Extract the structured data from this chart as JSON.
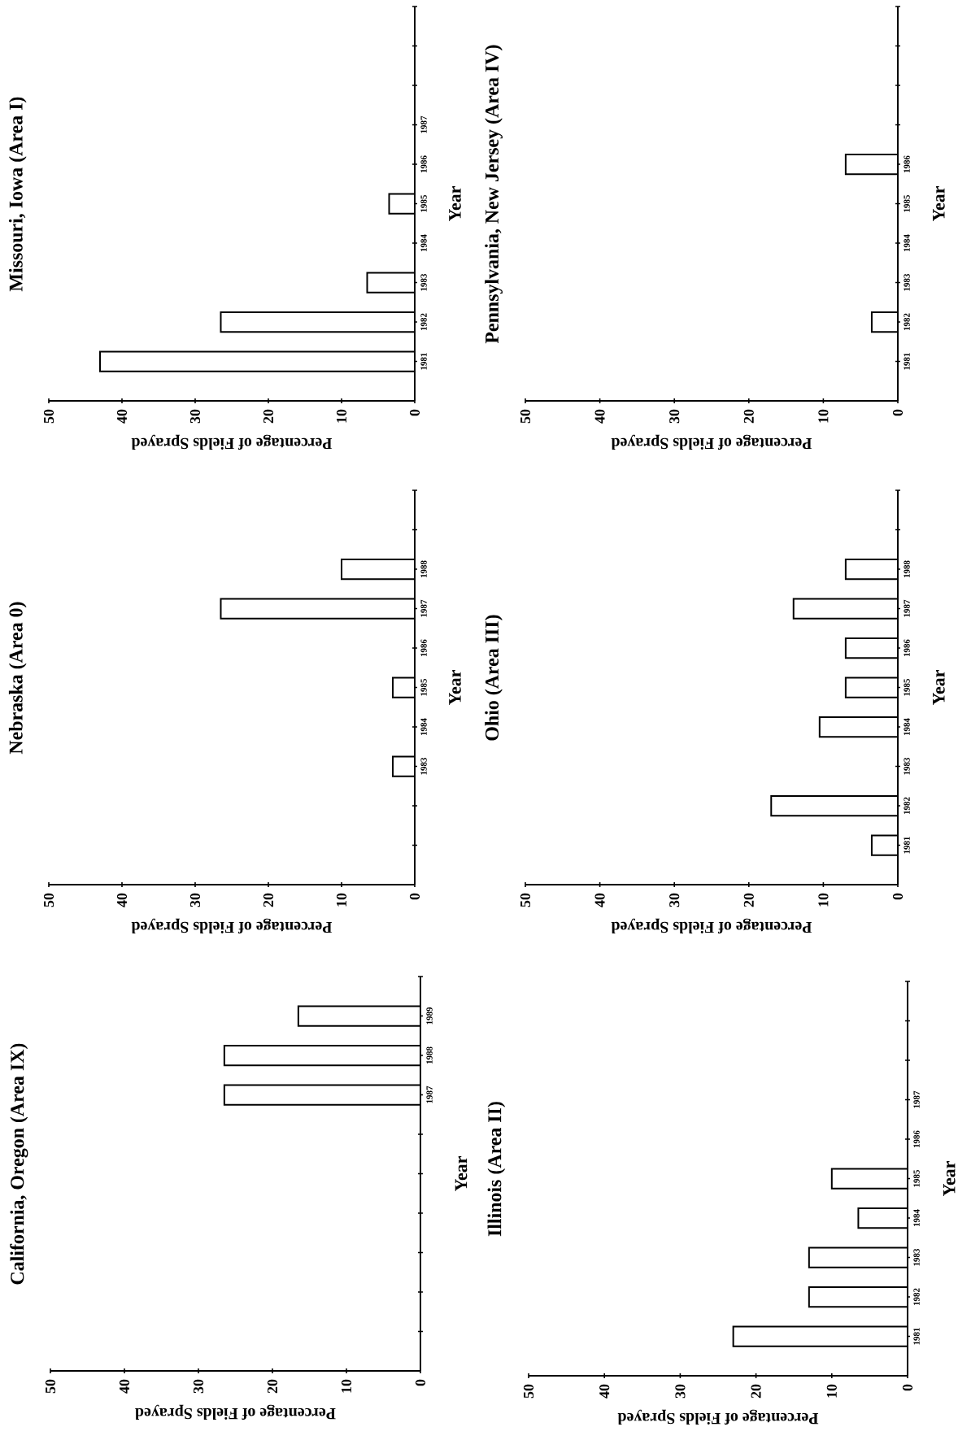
{
  "chart_data": [
    {
      "type": "bar",
      "orientation": "horizontal",
      "title": "Missouri, Iowa (Area I)",
      "ylabel": "Year",
      "xlabel": "Percentage of Fields Sprayed",
      "categories": [
        null,
        null,
        "1987",
        "1986",
        "1985",
        "1984",
        "1983",
        "1982",
        "1981"
      ],
      "values": [
        null,
        null,
        0,
        0,
        3.5,
        0,
        6.5,
        26.5,
        43
      ],
      "color": "#ffffff",
      "xlim": [
        50,
        0
      ],
      "xticks": [
        0,
        10,
        20,
        30,
        40,
        50
      ]
    },
    {
      "type": "bar",
      "orientation": "horizontal",
      "title": "Pennsylvania, New Jersey (Area IV)",
      "ylabel": "Year",
      "xlabel": "Percentage of Fields Sprayed",
      "categories": [
        null,
        null,
        null,
        "1986",
        "1985",
        "1984",
        "1983",
        "1982",
        "1981"
      ],
      "values": [
        null,
        null,
        null,
        7,
        0,
        0,
        0,
        3.5,
        0
      ],
      "color": "#ffffff",
      "xlim": [
        50,
        0
      ],
      "xticks": [
        0,
        10,
        20,
        30,
        40,
        50
      ]
    },
    {
      "type": "bar",
      "orientation": "horizontal",
      "title": "Nebraska (Area 0)",
      "ylabel": "Year",
      "xlabel": "Percentage of Fields Sprayed",
      "categories": [
        null,
        "1988",
        "1987",
        "1986",
        "1985",
        "1984",
        "1983",
        null,
        null
      ],
      "values": [
        null,
        10,
        26.5,
        0,
        3,
        0,
        3,
        null,
        null
      ],
      "color": "#ffffff",
      "xlim": [
        50,
        0
      ],
      "xticks": [
        0,
        10,
        20,
        30,
        40,
        50
      ]
    },
    {
      "type": "bar",
      "orientation": "horizontal",
      "title": "Ohio (Area III)",
      "ylabel": "Year",
      "xlabel": "Percentage of Fields Sprayed",
      "categories": [
        null,
        "1988",
        "1987",
        "1986",
        "1985",
        "1984",
        "1983",
        "1982",
        "1981"
      ],
      "values": [
        null,
        7,
        14,
        7,
        7,
        10.5,
        0,
        17,
        3.5
      ],
      "color": "#ffffff",
      "xlim": [
        50,
        0
      ],
      "xticks": [
        0,
        10,
        20,
        30,
        40,
        50
      ]
    },
    {
      "type": "bar",
      "orientation": "horizontal",
      "title": "California, Oregon (Area IX)",
      "ylabel": "Year",
      "xlabel": "Percentage of Fields Sprayed",
      "categories": [
        "1989",
        "1988",
        "1987",
        null,
        null,
        null,
        null,
        null,
        null
      ],
      "values": [
        16.5,
        26.5,
        26.5,
        null,
        null,
        null,
        null,
        null,
        null
      ],
      "color": "#ffffff",
      "xlim": [
        50,
        0
      ],
      "xticks": [
        0,
        10,
        20,
        30,
        40,
        50
      ]
    },
    {
      "type": "bar",
      "orientation": "horizontal",
      "title": "Illinois (Area II)",
      "ylabel": "Year",
      "xlabel": "Percentage of Fields Sprayed",
      "categories": [
        null,
        null,
        "1987",
        "1986",
        "1985",
        "1984",
        "1983",
        "1982",
        "1981"
      ],
      "values": [
        null,
        null,
        0,
        0,
        10,
        6.5,
        13,
        13,
        23
      ],
      "color": "#ffffff",
      "xlim": [
        50,
        0
      ],
      "xticks": [
        0,
        10,
        20,
        30,
        40,
        50
      ]
    }
  ]
}
